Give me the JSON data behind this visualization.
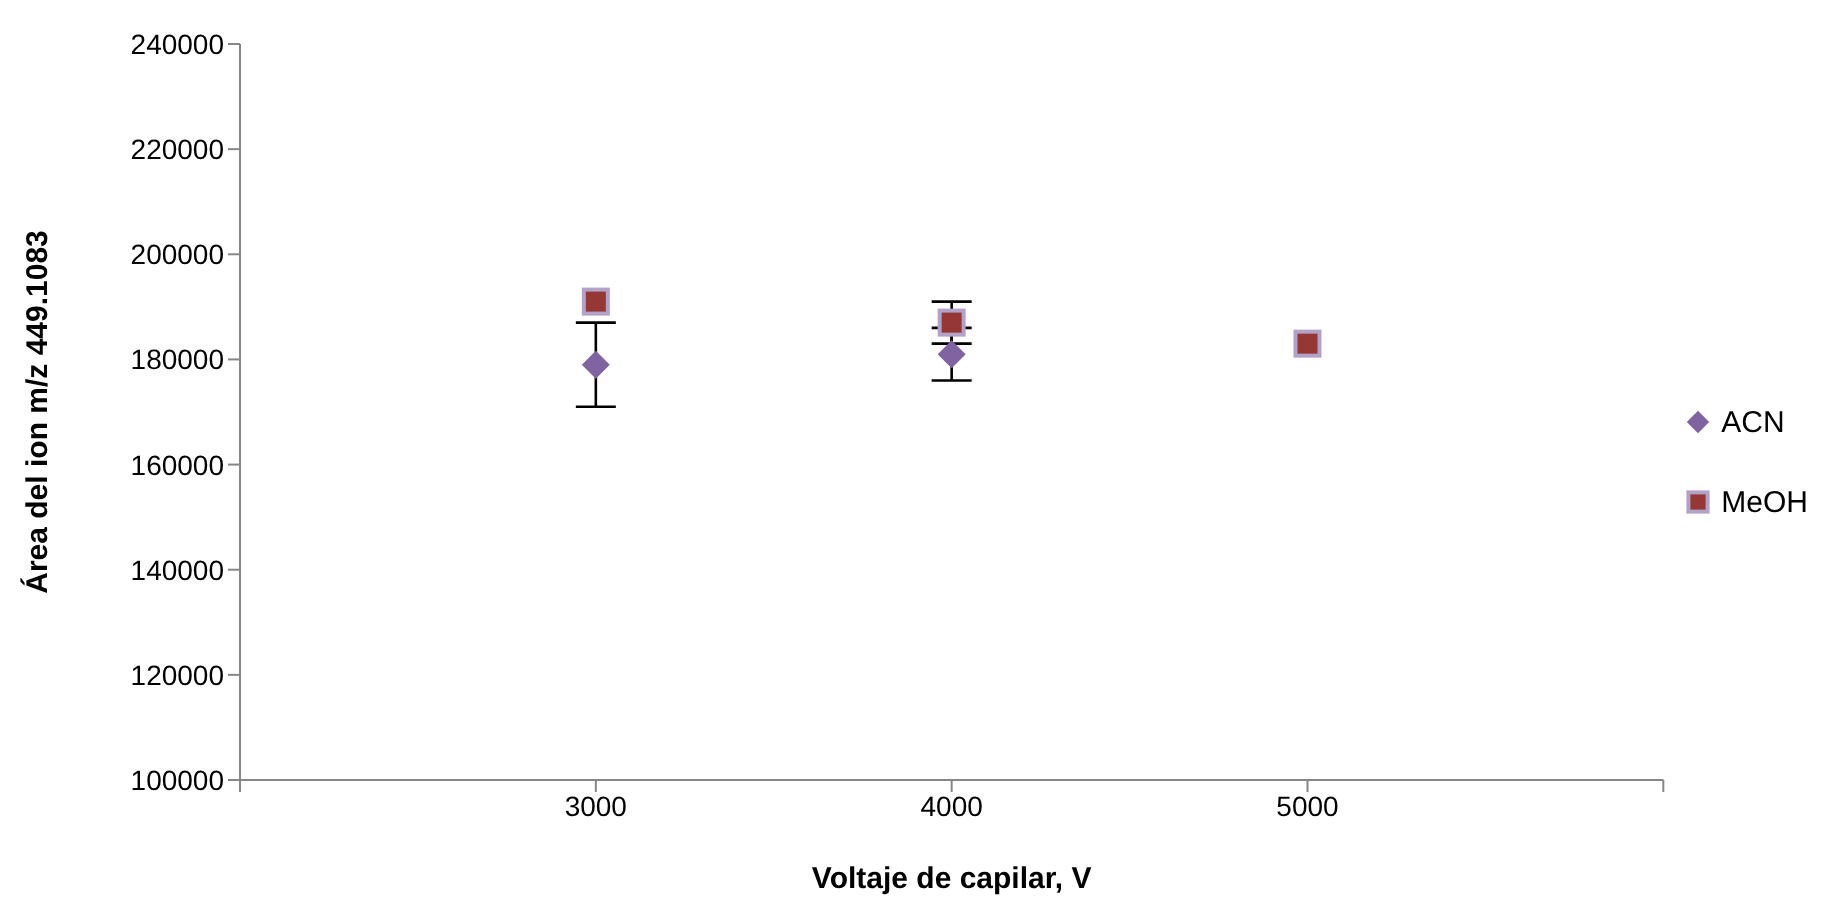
{
  "chart_data": {
    "type": "scatter",
    "xlabel": "Voltaje de capilar, V",
    "ylabel": "Área del ion m/z 449.1083",
    "series": [
      {
        "name": "ACN",
        "color": "#8064a2",
        "marker": "diamond",
        "x": [
          3000,
          4000
        ],
        "values": [
          179000,
          181000
        ],
        "errors": [
          8000,
          5000
        ]
      },
      {
        "name": "MeOH",
        "color": "#953735",
        "marker": "square",
        "x": [
          3000,
          4000,
          5000
        ],
        "values": [
          191000,
          187000,
          183000
        ],
        "errors": [
          null,
          4000,
          null
        ]
      }
    ],
    "xlim": [
      2000,
      6000
    ],
    "xticks": [
      {
        "value": 2000,
        "label": null
      },
      3000,
      4000,
      5000,
      {
        "value": 6000,
        "label": null
      }
    ],
    "ylim": [
      100000,
      240000
    ],
    "yticks": [
      100000,
      120000,
      140000,
      160000,
      180000,
      200000,
      220000,
      240000
    ],
    "grid": false,
    "legend": "right"
  }
}
